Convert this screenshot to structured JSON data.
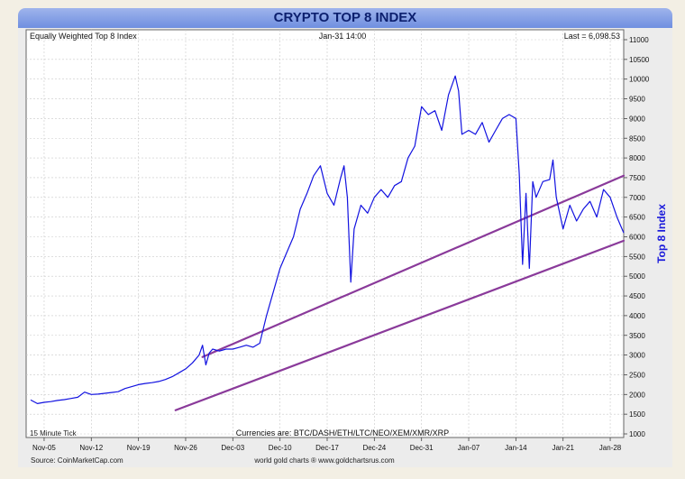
{
  "chart_data": {
    "type": "line",
    "title": "CRYPTO TOP 8 INDEX",
    "subtitle_left": "Equally Weighted Top 8 Index",
    "subtitle_center": "Jan-31  14:00",
    "subtitle_right": "Last = 6,098.53",
    "ylabel": "Top 8 Index",
    "tick_note": "15 Minute Tick",
    "currencies_note": "Currencies are: BTC/DASH/ETH/LTC/NEO/XEM/XMR/XRP",
    "source": "Source: CoinMarketCap.com",
    "credit": "world gold charts ® www.goldchartsrus.com",
    "ylim": [
      1000,
      11000
    ],
    "x_range_days": [
      0,
      88
    ],
    "x_tick_labels": [
      "Nov-05",
      "Nov-12",
      "Nov-19",
      "Nov-26",
      "Dec-03",
      "Dec-10",
      "Dec-17",
      "Dec-24",
      "Dec-31",
      "Jan-07",
      "Jan-14",
      "Jan-21",
      "Jan-28"
    ],
    "y_ticks": [
      1000,
      1500,
      2000,
      2500,
      3000,
      3500,
      4000,
      4500,
      5000,
      5500,
      6000,
      6500,
      7000,
      7500,
      8000,
      8500,
      9000,
      9500,
      10000,
      10500,
      11000
    ],
    "y_tick_labels": [
      "1000",
      "1500",
      "2000",
      "2500",
      "3000",
      "3500",
      "4000",
      "4500",
      "5000",
      "5500",
      "6000",
      "6500",
      "7000",
      "7500",
      "8000",
      "8500",
      "9000",
      "9500",
      "10000",
      "10500",
      "11000"
    ],
    "grid": true,
    "series": [
      {
        "name": "",
        "color": "#1212e0",
        "points": [
          [
            0,
            1860
          ],
          [
            1,
            1770
          ],
          [
            2,
            1800
          ],
          [
            3,
            1820
          ],
          [
            4,
            1850
          ],
          [
            5,
            1870
          ],
          [
            6,
            1900
          ],
          [
            7,
            1930
          ],
          [
            8,
            2060
          ],
          [
            9,
            2000
          ],
          [
            10,
            2010
          ],
          [
            11,
            2030
          ],
          [
            12,
            2050
          ],
          [
            13,
            2070
          ],
          [
            14,
            2150
          ],
          [
            15,
            2200
          ],
          [
            16,
            2250
          ],
          [
            17,
            2280
          ],
          [
            18,
            2300
          ],
          [
            19,
            2330
          ],
          [
            20,
            2380
          ],
          [
            21,
            2450
          ],
          [
            22,
            2550
          ],
          [
            23,
            2650
          ],
          [
            24,
            2800
          ],
          [
            25,
            3000
          ],
          [
            25.5,
            3250
          ],
          [
            26,
            2750
          ],
          [
            26.5,
            3050
          ],
          [
            27,
            3150
          ],
          [
            28,
            3100
          ],
          [
            29,
            3150
          ],
          [
            30,
            3150
          ],
          [
            31,
            3200
          ],
          [
            32,
            3250
          ],
          [
            33,
            3200
          ],
          [
            34,
            3300
          ],
          [
            35,
            4000
          ],
          [
            36,
            4600
          ],
          [
            37,
            5200
          ],
          [
            38,
            5600
          ],
          [
            39,
            6000
          ],
          [
            40,
            6700
          ],
          [
            41,
            7100
          ],
          [
            42,
            7550
          ],
          [
            43,
            7800
          ],
          [
            44,
            7100
          ],
          [
            45,
            6800
          ],
          [
            46,
            7500
          ],
          [
            46.5,
            7800
          ],
          [
            47,
            7000
          ],
          [
            47.5,
            4850
          ],
          [
            48,
            6200
          ],
          [
            49,
            6800
          ],
          [
            50,
            6600
          ],
          [
            51,
            7000
          ],
          [
            52,
            7200
          ],
          [
            53,
            7000
          ],
          [
            54,
            7300
          ],
          [
            55,
            7400
          ],
          [
            56,
            8000
          ],
          [
            57,
            8300
          ],
          [
            58,
            9300
          ],
          [
            59,
            9100
          ],
          [
            60,
            9200
          ],
          [
            61,
            8700
          ],
          [
            62,
            9600
          ],
          [
            63,
            10080
          ],
          [
            63.5,
            9700
          ],
          [
            64,
            8600
          ],
          [
            65,
            8700
          ],
          [
            66,
            8600
          ],
          [
            67,
            8900
          ],
          [
            68,
            8400
          ],
          [
            69,
            8700
          ],
          [
            70,
            9000
          ],
          [
            71,
            9100
          ],
          [
            72,
            9000
          ],
          [
            72.5,
            7600
          ],
          [
            73,
            5300
          ],
          [
            73.5,
            7100
          ],
          [
            74,
            5200
          ],
          [
            74.5,
            7400
          ],
          [
            75,
            7000
          ],
          [
            76,
            7400
          ],
          [
            77,
            7450
          ],
          [
            77.5,
            7950
          ],
          [
            78,
            7000
          ],
          [
            79,
            6200
          ],
          [
            80,
            6800
          ],
          [
            81,
            6400
          ],
          [
            82,
            6700
          ],
          [
            83,
            6900
          ],
          [
            84,
            6500
          ],
          [
            85,
            7200
          ],
          [
            86,
            7000
          ],
          [
            87,
            6500
          ],
          [
            88,
            6098
          ]
        ]
      }
    ],
    "trendlines": [
      {
        "color": "#8a3a9a",
        "from": [
          21.5,
          1600
        ],
        "to": [
          88,
          5900
        ]
      },
      {
        "color": "#8a3a9a",
        "from": [
          25.5,
          2950
        ],
        "to": [
          88,
          7550
        ]
      }
    ]
  }
}
